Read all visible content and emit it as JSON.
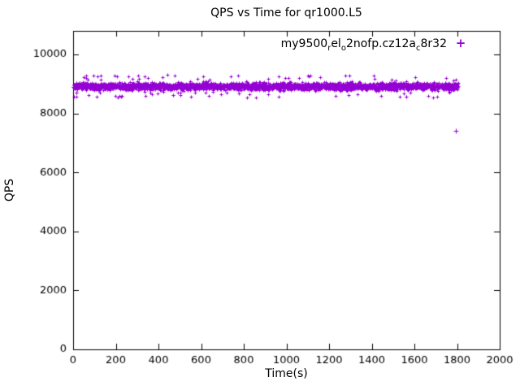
{
  "chart_data": {
    "type": "scatter",
    "title": "QPS vs Time for qr1000.L5",
    "xlabel": "Time(s)",
    "ylabel": "QPS",
    "xlim": [
      0,
      2000
    ],
    "ylim": [
      0,
      10800
    ],
    "x_ticks": [
      0,
      200,
      400,
      600,
      800,
      1000,
      1200,
      1400,
      1600,
      1800,
      2000
    ],
    "y_ticks": [
      0,
      2000,
      4000,
      6000,
      8000,
      10000
    ],
    "grid": false,
    "legend_position": "top-right-inside",
    "axis_color": "#000000",
    "background": "#ffffff",
    "series": [
      {
        "name": "my9500_rel_o2nofp.cz12a_c8r32",
        "label_segments": [
          {
            "text": "my9500"
          },
          {
            "text": "r",
            "sub": true
          },
          {
            "text": "el"
          },
          {
            "text": "o",
            "sub": true
          },
          {
            "text": "2nofp.cz12a"
          },
          {
            "text": "c",
            "sub": true
          },
          {
            "text": "8r32"
          }
        ],
        "marker": "+",
        "color": "#9400d3",
        "band": {
          "x_min": 0,
          "x_max": 1805,
          "mean_qps": 8920,
          "typical_jitter": 120,
          "max_jitter": 380,
          "points": 3600
        },
        "outliers": [
          [
            1795,
            7400
          ]
        ]
      }
    ]
  }
}
